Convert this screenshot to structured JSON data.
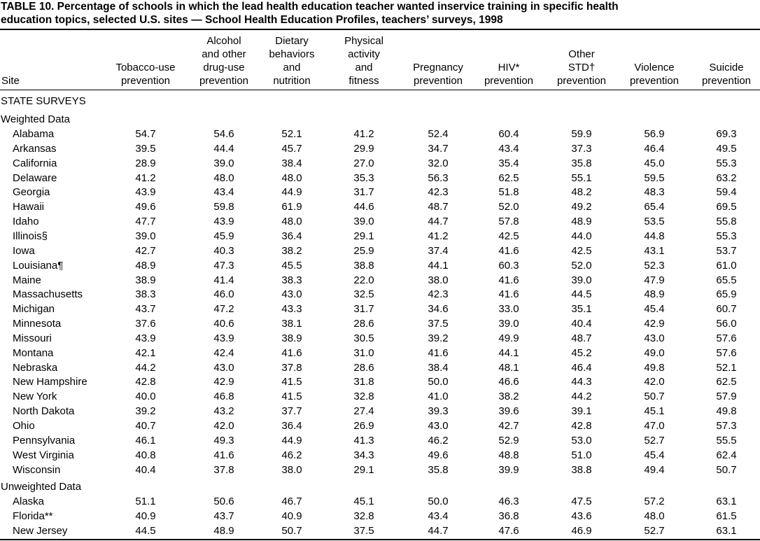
{
  "title": [
    "TABLE 10. Percentage of schools in which the lead health education teacher wanted inservice training in specific health",
    "education topics, selected U.S. sites — School Health Education Profiles, teachers’ surveys, 1998"
  ],
  "table": {
    "site_header": "Site",
    "columns": [
      [
        "Tobacco-use",
        "prevention"
      ],
      [
        "Alcohol",
        "and other",
        "drug-use",
        "prevention"
      ],
      [
        "Dietary",
        "behaviors",
        "and",
        "nutrition"
      ],
      [
        "Physical",
        "activity",
        "and",
        "fitness"
      ],
      [
        "Pregnancy",
        "prevention"
      ],
      [
        "HIV*",
        "prevention"
      ],
      [
        "Other",
        "STD†",
        "prevention"
      ],
      [
        "Violence",
        "prevention"
      ],
      [
        "Suicide",
        "prevention"
      ]
    ],
    "section": "STATE SURVEYS",
    "groups": [
      {
        "label": "Weighted Data",
        "rows": [
          [
            "Alabama",
            "54.7",
            "54.6",
            "52.1",
            "41.2",
            "52.4",
            "60.4",
            "59.9",
            "56.9",
            "69.3"
          ],
          [
            "Arkansas",
            "39.5",
            "44.4",
            "45.7",
            "29.9",
            "34.7",
            "43.4",
            "37.3",
            "46.4",
            "49.5"
          ],
          [
            "California",
            "28.9",
            "39.0",
            "38.4",
            "27.0",
            "32.0",
            "35.4",
            "35.8",
            "45.0",
            "55.3"
          ],
          [
            "Delaware",
            "41.2",
            "48.0",
            "48.0",
            "35.3",
            "56.3",
            "62.5",
            "55.1",
            "59.5",
            "63.2"
          ],
          [
            "Georgia",
            "43.9",
            "43.4",
            "44.9",
            "31.7",
            "42.3",
            "51.8",
            "48.2",
            "48.3",
            "59.4"
          ],
          [
            "Hawaii",
            "49.6",
            "59.8",
            "61.9",
            "44.6",
            "48.7",
            "52.0",
            "49.2",
            "65.4",
            "69.5"
          ],
          [
            "Idaho",
            "47.7",
            "43.9",
            "48.0",
            "39.0",
            "44.7",
            "57.8",
            "48.9",
            "53.5",
            "55.8"
          ],
          [
            "Illinois§",
            "39.0",
            "45.9",
            "36.4",
            "29.1",
            "41.2",
            "42.5",
            "44.0",
            "44.8",
            "55.3"
          ],
          [
            "Iowa",
            "42.7",
            "40.3",
            "38.2",
            "25.9",
            "37.4",
            "41.6",
            "42.5",
            "43.1",
            "53.7"
          ],
          [
            "Louisiana¶",
            "48.9",
            "47.3",
            "45.5",
            "38.8",
            "44.1",
            "60.3",
            "52.0",
            "52.3",
            "61.0"
          ],
          [
            "Maine",
            "38.9",
            "41.4",
            "38.3",
            "22.0",
            "38.0",
            "41.6",
            "39.0",
            "47.9",
            "65.5"
          ],
          [
            "Massachusetts",
            "38.3",
            "46.0",
            "43.0",
            "32.5",
            "42.3",
            "41.6",
            "44.5",
            "48.9",
            "65.9"
          ],
          [
            "Michigan",
            "43.7",
            "47.2",
            "43.3",
            "31.7",
            "34.6",
            "33.0",
            "35.1",
            "45.4",
            "60.7"
          ],
          [
            "Minnesota",
            "37.6",
            "40.6",
            "38.1",
            "28.6",
            "37.5",
            "39.0",
            "40.4",
            "42.9",
            "56.0"
          ],
          [
            "Missouri",
            "43.9",
            "43.9",
            "38.9",
            "30.5",
            "39.2",
            "49.9",
            "48.7",
            "43.0",
            "57.6"
          ],
          [
            "Montana",
            "42.1",
            "42.4",
            "41.6",
            "31.0",
            "41.6",
            "44.1",
            "45.2",
            "49.0",
            "57.6"
          ],
          [
            "Nebraska",
            "44.2",
            "43.0",
            "37.8",
            "28.6",
            "38.4",
            "48.1",
            "46.4",
            "49.8",
            "52.1"
          ],
          [
            "New Hampshire",
            "42.8",
            "42.9",
            "41.5",
            "31.8",
            "50.0",
            "46.6",
            "44.3",
            "42.0",
            "62.5"
          ],
          [
            "New York",
            "40.0",
            "46.8",
            "41.5",
            "32.8",
            "41.0",
            "38.2",
            "44.2",
            "50.7",
            "57.9"
          ],
          [
            "North Dakota",
            "39.2",
            "43.2",
            "37.7",
            "27.4",
            "39.3",
            "39.6",
            "39.1",
            "45.1",
            "49.8"
          ],
          [
            "Ohio",
            "40.7",
            "42.0",
            "36.4",
            "26.9",
            "43.0",
            "42.7",
            "42.8",
            "47.0",
            "57.3"
          ],
          [
            "Pennsylvania",
            "46.1",
            "49.3",
            "44.9",
            "41.3",
            "46.2",
            "52.9",
            "53.0",
            "52.7",
            "55.5"
          ],
          [
            "West Virginia",
            "40.8",
            "41.6",
            "46.2",
            "34.3",
            "49.6",
            "48.8",
            "51.0",
            "45.4",
            "62.4"
          ],
          [
            "Wisconsin",
            "40.4",
            "37.8",
            "38.0",
            "29.1",
            "35.8",
            "39.9",
            "38.8",
            "49.4",
            "50.7"
          ]
        ]
      },
      {
        "label": "Unweighted Data",
        "rows": [
          [
            "Alaska",
            "51.1",
            "50.6",
            "46.7",
            "45.1",
            "50.0",
            "46.3",
            "47.5",
            "57.2",
            "63.1"
          ],
          [
            "Florida**",
            "40.9",
            "43.7",
            "40.9",
            "32.8",
            "43.4",
            "36.8",
            "43.6",
            "48.0",
            "61.5"
          ],
          [
            "New Jersey",
            "44.5",
            "48.9",
            "50.7",
            "37.5",
            "44.7",
            "47.6",
            "46.9",
            "52.7",
            "63.1"
          ]
        ]
      }
    ]
  }
}
